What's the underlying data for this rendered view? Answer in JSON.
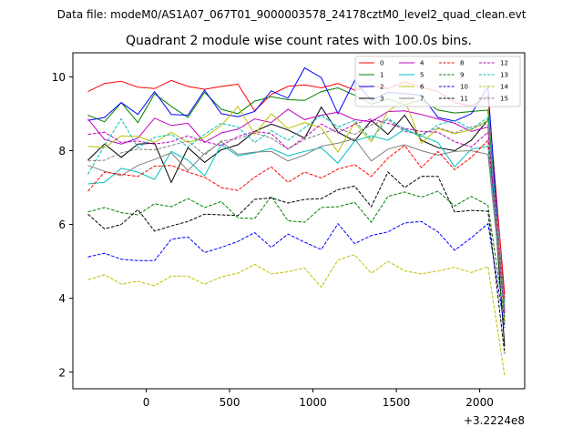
{
  "chart_data": {
    "type": "line",
    "suptitle": "Data file: modeM0/AS1A07_067T01_9000003578_24178cztM0_level2_quad_clean.evt",
    "title": "Quadrant 2 module wise count rates with 100.0s bins.",
    "xlabel": "",
    "ylabel": "",
    "offset_label": "+3.2224e8",
    "xlim": [
      -440,
      2270
    ],
    "ylim": [
      1.55,
      10.65
    ],
    "xticks": [
      0,
      500,
      1000,
      1500,
      2000
    ],
    "yticks": [
      2,
      4,
      6,
      8,
      10
    ],
    "legend_position": "top-right",
    "x": [
      -350,
      -250,
      -150,
      -50,
      50,
      150,
      250,
      350,
      450,
      550,
      650,
      750,
      850,
      950,
      1050,
      1150,
      1250,
      1350,
      1450,
      1550,
      1650,
      1750,
      1850,
      1950,
      2050,
      2150
    ],
    "series": [
      {
        "name": "0",
        "color": "#ff0000",
        "dash": "solid",
        "values": [
          9.6,
          9.82,
          9.88,
          9.72,
          9.68,
          9.9,
          9.74,
          9.66,
          9.74,
          9.8,
          9.08,
          9.52,
          9.74,
          9.78,
          9.7,
          9.82,
          9.64,
          9.76,
          9.68,
          9.86,
          9.72,
          9.6,
          9.3,
          9.2,
          9.48,
          4.1
        ]
      },
      {
        "name": "1",
        "color": "#008000",
        "dash": "solid",
        "values": [
          8.96,
          8.78,
          9.3,
          8.76,
          9.54,
          9.2,
          8.9,
          9.58,
          9.12,
          9.0,
          9.34,
          9.46,
          9.38,
          9.36,
          9.6,
          9.7,
          9.5,
          9.26,
          9.4,
          9.24,
          9.38,
          9.1,
          9.02,
          9.06,
          9.1,
          3.6
        ]
      },
      {
        "name": "2",
        "color": "#0000ff",
        "dash": "solid",
        "values": [
          8.82,
          8.9,
          9.3,
          8.98,
          9.6,
          8.98,
          8.96,
          9.64,
          9.0,
          8.92,
          9.06,
          9.62,
          9.42,
          10.24,
          9.98,
          9.0,
          9.9,
          9.36,
          9.58,
          9.54,
          9.5,
          8.9,
          8.8,
          9.0,
          9.72,
          3.3
        ]
      },
      {
        "name": "3",
        "color": "#000000",
        "dash": "solid",
        "values": [
          7.74,
          8.18,
          7.82,
          8.18,
          8.2,
          7.14,
          8.08,
          7.68,
          8.02,
          8.16,
          8.52,
          8.72,
          8.56,
          8.34,
          9.18,
          8.5,
          8.26,
          8.82,
          8.44,
          8.96,
          8.28,
          8.08,
          8.0,
          8.28,
          8.84,
          2.7
        ]
      },
      {
        "name": "4",
        "color": "#bf00bf",
        "dash": "solid",
        "values": [
          8.86,
          8.3,
          8.18,
          8.34,
          8.88,
          8.68,
          8.74,
          8.22,
          8.48,
          8.58,
          8.86,
          8.76,
          9.12,
          8.84,
          8.96,
          9.04,
          8.84,
          8.78,
          9.06,
          9.08,
          8.98,
          8.86,
          8.74,
          8.52,
          8.64,
          3.9
        ]
      },
      {
        "name": "5",
        "color": "#00bfbf",
        "dash": "solid",
        "values": [
          7.1,
          7.14,
          7.52,
          7.42,
          7.22,
          7.98,
          7.74,
          7.32,
          8.16,
          7.86,
          7.94,
          8.06,
          7.86,
          7.98,
          8.08,
          7.66,
          8.26,
          8.4,
          8.28,
          8.58,
          8.4,
          8.22,
          7.56,
          8.04,
          8.12,
          3.7
        ]
      },
      {
        "name": "6",
        "color": "#bfbf00",
        "dash": "solid",
        "values": [
          8.12,
          8.08,
          8.4,
          8.38,
          8.22,
          8.5,
          8.22,
          8.36,
          8.68,
          9.2,
          8.44,
          9.0,
          8.6,
          8.76,
          8.62,
          7.96,
          8.76,
          8.24,
          9.06,
          9.38,
          8.2,
          8.6,
          8.46,
          8.56,
          8.82,
          3.3
        ]
      },
      {
        "name": "7",
        "color": "#808080",
        "dash": "solid",
        "values": [
          7.6,
          7.44,
          7.32,
          7.6,
          7.76,
          7.94,
          7.46,
          7.92,
          8.24,
          7.9,
          7.96,
          7.98,
          7.72,
          7.88,
          8.12,
          8.2,
          8.32,
          7.72,
          8.04,
          8.16,
          8.0,
          7.88,
          7.98,
          8.0,
          7.9,
          3.5
        ]
      },
      {
        "name": "8",
        "color": "#ff0000",
        "dash": "dashed",
        "values": [
          6.9,
          7.42,
          7.36,
          7.3,
          7.58,
          7.6,
          7.42,
          7.28,
          7.0,
          6.92,
          7.28,
          7.56,
          7.14,
          7.42,
          7.26,
          7.5,
          7.62,
          7.3,
          7.8,
          8.14,
          7.54,
          7.98,
          7.48,
          7.82,
          8.28,
          4.0
        ]
      },
      {
        "name": "9",
        "color": "#008000",
        "dash": "dashed",
        "values": [
          6.34,
          6.46,
          6.32,
          6.26,
          6.56,
          6.48,
          6.7,
          6.46,
          6.62,
          6.18,
          6.16,
          6.76,
          6.1,
          6.06,
          6.46,
          6.48,
          6.6,
          6.06,
          6.76,
          6.88,
          6.74,
          6.9,
          6.5,
          6.76,
          6.52,
          3.4
        ]
      },
      {
        "name": "10",
        "color": "#0000ff",
        "dash": "dashed",
        "values": [
          5.12,
          5.22,
          5.06,
          5.02,
          5.02,
          5.6,
          5.66,
          5.24,
          5.38,
          5.54,
          5.78,
          5.38,
          5.74,
          5.52,
          5.32,
          6.02,
          5.48,
          5.7,
          5.8,
          6.04,
          6.08,
          5.8,
          5.3,
          5.64,
          6.02,
          3.2
        ]
      },
      {
        "name": "11",
        "color": "#000000",
        "dash": "dashed",
        "values": [
          6.28,
          5.88,
          6.0,
          6.4,
          5.82,
          5.96,
          6.08,
          6.28,
          6.26,
          6.24,
          6.68,
          6.72,
          6.58,
          6.68,
          6.7,
          6.94,
          7.04,
          6.48,
          7.42,
          7.0,
          7.3,
          7.3,
          6.34,
          6.38,
          6.36,
          2.5
        ]
      },
      {
        "name": "12",
        "color": "#bf00bf",
        "dash": "dashed",
        "values": [
          8.44,
          8.5,
          8.22,
          8.26,
          8.18,
          8.24,
          8.4,
          8.24,
          8.14,
          8.38,
          8.52,
          8.46,
          8.04,
          8.36,
          8.72,
          8.48,
          8.72,
          8.86,
          8.74,
          8.6,
          8.52,
          8.5,
          8.24,
          8.1,
          8.5,
          3.6
        ]
      },
      {
        "name": "13",
        "color": "#00bfbf",
        "dash": "dashed",
        "values": [
          7.36,
          8.14,
          8.86,
          8.08,
          8.36,
          8.44,
          8.1,
          8.44,
          8.74,
          8.64,
          8.22,
          8.54,
          8.28,
          8.62,
          8.96,
          8.64,
          8.82,
          8.3,
          8.88,
          8.56,
          8.38,
          8.7,
          8.82,
          8.58,
          8.9,
          3.8
        ]
      },
      {
        "name": "14",
        "color": "#bfbf00",
        "dash": "dashed",
        "values": [
          4.5,
          4.64,
          4.38,
          4.46,
          4.34,
          4.6,
          4.6,
          4.38,
          4.58,
          4.68,
          4.92,
          4.66,
          4.72,
          4.82,
          4.3,
          5.04,
          5.18,
          4.68,
          5.0,
          4.74,
          4.66,
          4.74,
          4.84,
          4.7,
          4.86,
          1.9
        ]
      },
      {
        "name": "15",
        "color": "#808080",
        "dash": "dashed",
        "values": [
          7.72,
          7.74,
          7.94,
          8.04,
          8.02,
          8.14,
          8.26,
          7.88,
          8.26,
          8.32,
          8.48,
          8.34,
          8.04,
          8.3,
          8.46,
          8.6,
          8.44,
          8.7,
          8.84,
          8.52,
          8.44,
          8.62,
          8.48,
          8.64,
          8.72,
          3.7
        ]
      }
    ]
  }
}
